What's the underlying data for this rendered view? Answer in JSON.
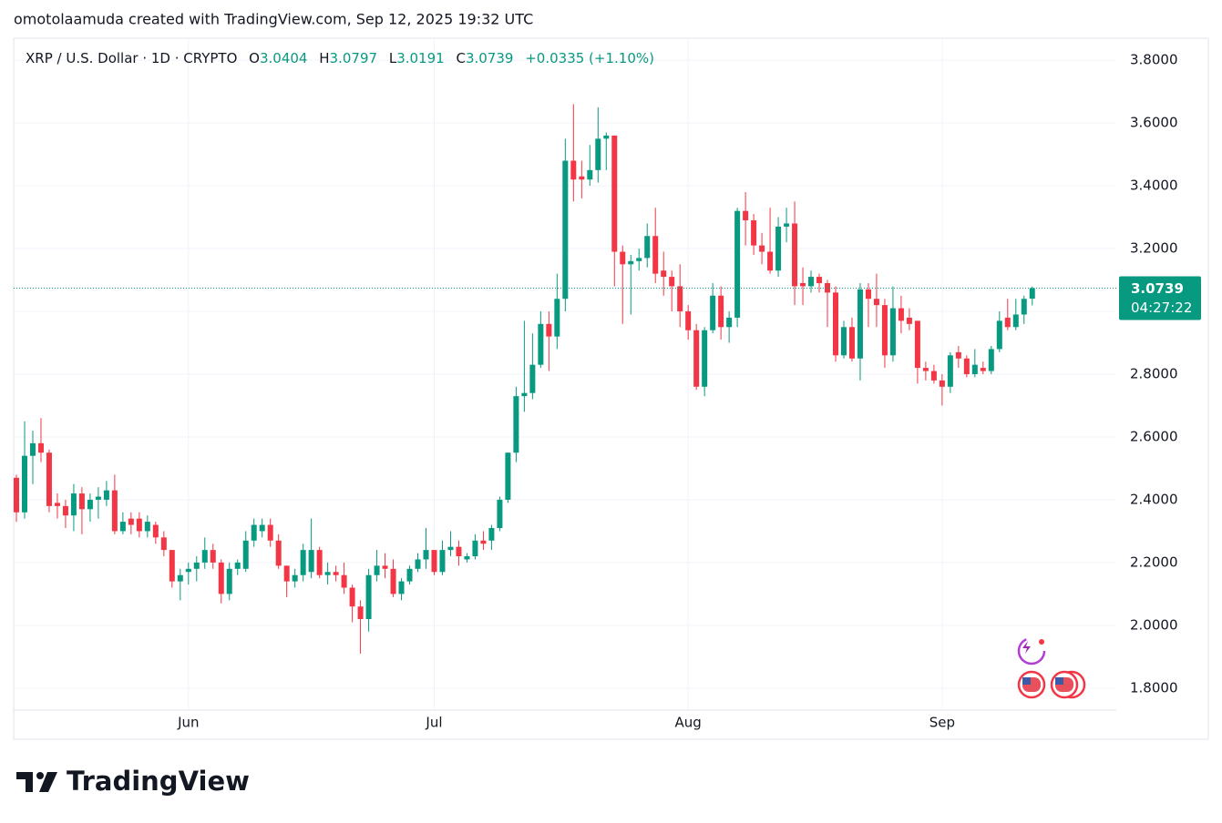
{
  "attribution": "omotolaamuda created with TradingView.com, Sep 12, 2025 19:32 UTC",
  "footer": {
    "brand": "TradingView"
  },
  "chart_data": {
    "type": "candlestick",
    "title": "XRP / U.S. Dollar · 1D · CRYPTO",
    "ohlc_labels": [
      "O",
      "H",
      "L",
      "C"
    ],
    "change_label": "+0.0335 (+1.10%)",
    "countdown": "04:27:22",
    "up_color": "#089981",
    "down_color": "#f23645",
    "grid": true,
    "ylim": [
      1.73,
      3.87
    ],
    "yticks": [
      {
        "value": 1.8,
        "label": "1.8000"
      },
      {
        "value": 2.0,
        "label": "2.0000"
      },
      {
        "value": 2.2,
        "label": "2.2000"
      },
      {
        "value": 2.4,
        "label": "2.4000"
      },
      {
        "value": 2.6,
        "label": "2.6000"
      },
      {
        "value": 2.8,
        "label": "2.8000"
      },
      {
        "value": 3.0,
        "label": "3.0000"
      },
      {
        "value": 3.2,
        "label": "3.2000"
      },
      {
        "value": 3.4,
        "label": "3.4000"
      },
      {
        "value": 3.6,
        "label": "3.6000"
      },
      {
        "value": 3.8,
        "label": "3.8000"
      }
    ],
    "categories": [
      null,
      null,
      null,
      null,
      null,
      null,
      null,
      null,
      null,
      null,
      null,
      null,
      null,
      null,
      null,
      null,
      null,
      null,
      null,
      null,
      null,
      "Jun",
      null,
      null,
      null,
      null,
      null,
      null,
      null,
      null,
      null,
      null,
      null,
      null,
      null,
      null,
      null,
      null,
      null,
      null,
      null,
      null,
      null,
      null,
      null,
      null,
      null,
      null,
      null,
      null,
      null,
      "Jul",
      null,
      null,
      null,
      null,
      null,
      null,
      null,
      null,
      null,
      null,
      null,
      null,
      null,
      null,
      null,
      null,
      null,
      null,
      null,
      null,
      null,
      null,
      null,
      null,
      null,
      null,
      null,
      null,
      null,
      null,
      "Aug",
      null,
      null,
      null,
      null,
      null,
      null,
      null,
      null,
      null,
      null,
      null,
      null,
      null,
      null,
      null,
      null,
      null,
      null,
      null,
      null,
      null,
      null,
      null,
      null,
      null,
      null,
      null,
      null,
      null,
      null,
      "Sep",
      null,
      null,
      null,
      null,
      null,
      null,
      null,
      null,
      null,
      null,
      null
    ],
    "open": [
      2.47,
      2.36,
      2.54,
      2.58,
      2.55,
      2.39,
      2.38,
      2.35,
      2.42,
      2.37,
      2.4,
      2.4,
      2.43,
      2.3,
      2.34,
      2.34,
      2.3,
      2.32,
      2.28,
      2.24,
      2.14,
      2.17,
      2.18,
      2.2,
      2.24,
      2.2,
      2.1,
      2.18,
      2.18,
      2.27,
      2.3,
      2.32,
      2.27,
      2.19,
      2.14,
      2.16,
      2.17,
      2.24,
      2.16,
      2.17,
      2.16,
      2.12,
      2.06,
      2.02,
      2.16,
      2.19,
      2.18,
      2.1,
      2.14,
      2.18,
      2.21,
      2.24,
      2.17,
      2.24,
      2.25,
      2.21,
      2.22,
      2.27,
      2.27,
      2.31,
      2.4,
      2.55,
      2.73,
      2.74,
      2.83,
      2.96,
      2.92,
      3.04,
      3.48,
      3.43,
      3.42,
      3.45,
      3.55,
      3.56,
      3.19,
      3.15,
      3.16,
      3.17,
      3.24,
      3.13,
      3.11,
      3.08,
      3.0,
      2.94,
      2.76,
      2.94,
      3.05,
      2.95,
      2.98,
      3.32,
      3.29,
      3.21,
      3.19,
      3.13,
      3.27,
      3.28,
      3.09,
      3.08,
      3.11,
      3.09,
      3.06,
      2.86,
      2.95,
      2.85,
      3.07,
      3.04,
      3.02,
      2.86,
      3.01,
      2.98,
      2.97,
      2.82,
      2.81,
      2.78,
      2.76,
      2.87,
      2.85,
      2.8,
      2.82,
      2.81,
      2.88,
      2.98,
      2.95,
      2.99,
      3.0404
    ],
    "high": [
      2.48,
      2.65,
      2.62,
      2.66,
      2.56,
      2.42,
      2.4,
      2.45,
      2.44,
      2.42,
      2.44,
      2.46,
      2.48,
      2.36,
      2.36,
      2.36,
      2.35,
      2.33,
      2.3,
      2.24,
      2.18,
      2.2,
      2.22,
      2.28,
      2.26,
      2.21,
      2.2,
      2.21,
      2.3,
      2.34,
      2.34,
      2.34,
      2.29,
      2.19,
      2.18,
      2.26,
      2.34,
      2.25,
      2.2,
      2.19,
      2.2,
      2.13,
      2.08,
      2.18,
      2.24,
      2.23,
      2.21,
      2.15,
      2.19,
      2.23,
      2.31,
      2.24,
      2.27,
      2.3,
      2.27,
      2.23,
      2.29,
      2.3,
      2.32,
      2.41,
      2.55,
      2.76,
      2.97,
      2.93,
      3.0,
      3.0,
      3.12,
      3.55,
      3.66,
      3.48,
      3.53,
      3.65,
      3.57,
      3.56,
      3.21,
      3.18,
      3.2,
      3.28,
      3.33,
      3.19,
      3.13,
      3.15,
      3.02,
      2.96,
      2.95,
      3.09,
      3.08,
      3.0,
      3.33,
      3.38,
      3.31,
      3.25,
      3.33,
      3.3,
      3.33,
      3.35,
      3.14,
      3.13,
      3.12,
      3.1,
      3.08,
      2.97,
      2.98,
      3.09,
      3.09,
      3.12,
      3.04,
      3.08,
      3.05,
      3.01,
      2.97,
      2.84,
      2.83,
      2.8,
      2.87,
      2.89,
      2.86,
      2.88,
      2.84,
      2.89,
      3.0,
      3.04,
      3.04,
      3.05,
      3.0797
    ],
    "low": [
      2.33,
      2.34,
      2.45,
      2.52,
      2.36,
      2.34,
      2.31,
      2.3,
      2.29,
      2.33,
      2.34,
      2.38,
      2.29,
      2.29,
      2.29,
      2.28,
      2.28,
      2.26,
      2.22,
      2.12,
      2.08,
      2.13,
      2.14,
      2.18,
      2.18,
      2.07,
      2.08,
      2.16,
      2.17,
      2.25,
      2.28,
      2.25,
      2.18,
      2.09,
      2.12,
      2.14,
      2.15,
      2.15,
      2.13,
      2.14,
      2.1,
      2.01,
      1.91,
      1.98,
      2.14,
      2.15,
      2.09,
      2.08,
      2.13,
      2.17,
      2.18,
      2.16,
      2.16,
      2.22,
      2.19,
      2.2,
      2.21,
      2.24,
      2.24,
      2.3,
      2.39,
      2.52,
      2.68,
      2.72,
      2.82,
      2.81,
      2.88,
      3.0,
      3.35,
      3.36,
      3.4,
      3.41,
      3.45,
      3.08,
      2.96,
      2.99,
      3.13,
      3.14,
      3.09,
      3.05,
      3.0,
      2.95,
      2.91,
      2.75,
      2.73,
      2.93,
      2.91,
      2.9,
      2.95,
      3.21,
      3.18,
      3.15,
      3.12,
      3.11,
      3.22,
      3.02,
      3.02,
      3.06,
      3.06,
      2.95,
      2.84,
      2.85,
      2.84,
      2.78,
      2.95,
      2.95,
      2.82,
      2.84,
      2.93,
      2.94,
      2.77,
      2.78,
      2.77,
      2.7,
      2.74,
      2.82,
      2.79,
      2.79,
      2.8,
      2.8,
      2.87,
      2.94,
      2.94,
      2.96,
      3.0191
    ],
    "close": [
      2.36,
      2.54,
      2.58,
      2.55,
      2.38,
      2.38,
      2.35,
      2.42,
      2.37,
      2.4,
      2.41,
      2.43,
      2.3,
      2.33,
      2.32,
      2.3,
      2.33,
      2.28,
      2.24,
      2.14,
      2.16,
      2.18,
      2.2,
      2.24,
      2.2,
      2.1,
      2.18,
      2.2,
      2.27,
      2.32,
      2.32,
      2.27,
      2.19,
      2.14,
      2.16,
      2.24,
      2.24,
      2.16,
      2.17,
      2.16,
      2.12,
      2.06,
      2.02,
      2.16,
      2.19,
      2.18,
      2.1,
      2.14,
      2.18,
      2.21,
      2.24,
      2.17,
      2.24,
      2.25,
      2.22,
      2.22,
      2.27,
      2.26,
      2.31,
      2.4,
      2.55,
      2.73,
      2.74,
      2.83,
      2.96,
      2.92,
      3.04,
      3.48,
      3.42,
      3.42,
      3.45,
      3.55,
      3.56,
      3.19,
      3.15,
      3.16,
      3.17,
      3.24,
      3.12,
      3.11,
      3.08,
      3.0,
      2.94,
      2.76,
      2.94,
      3.05,
      2.95,
      2.98,
      3.32,
      3.29,
      3.21,
      3.19,
      3.13,
      3.27,
      3.28,
      3.08,
      3.08,
      3.11,
      3.09,
      3.06,
      2.86,
      2.95,
      2.85,
      3.07,
      3.04,
      3.02,
      2.86,
      3.01,
      2.97,
      2.96,
      2.82,
      2.81,
      2.78,
      2.76,
      2.86,
      2.85,
      2.8,
      2.83,
      2.81,
      2.88,
      2.97,
      2.95,
      2.99,
      3.04,
      3.0739
    ]
  }
}
